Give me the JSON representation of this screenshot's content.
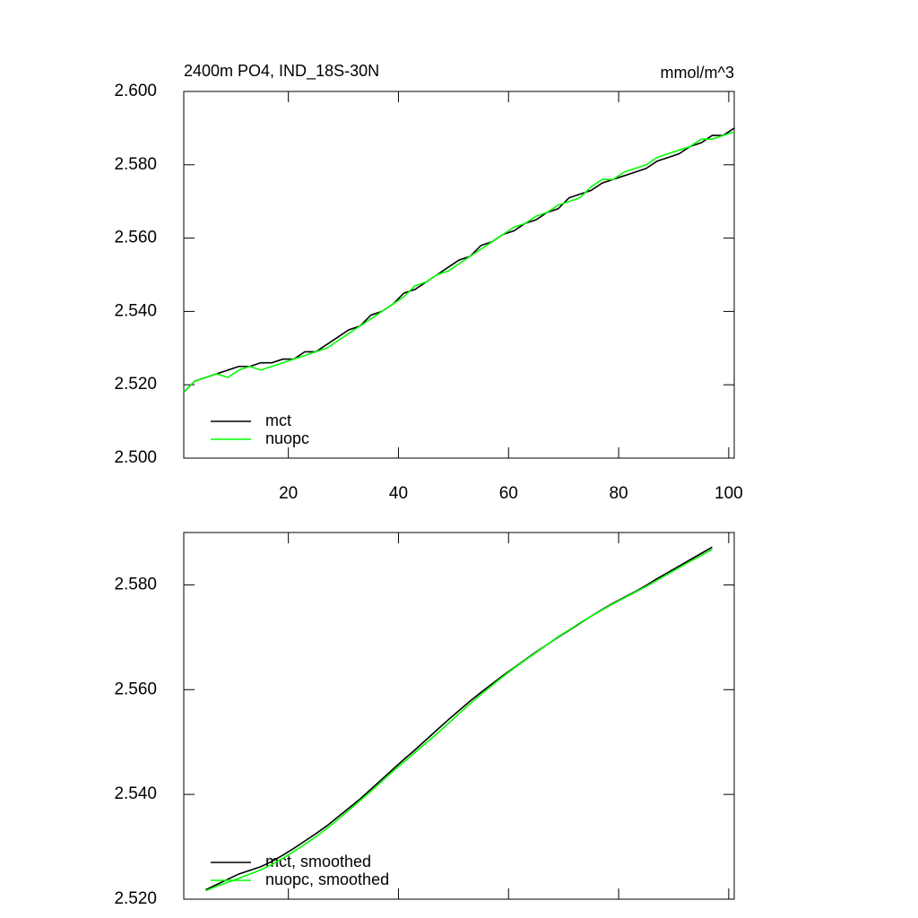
{
  "chart_data": [
    {
      "type": "line",
      "title": "2400m PO4, IND_18S-30N",
      "units": "mmol/m^3",
      "x": [
        1,
        3,
        5,
        7,
        9,
        11,
        13,
        15,
        17,
        19,
        21,
        23,
        25,
        27,
        29,
        31,
        33,
        35,
        37,
        39,
        41,
        43,
        45,
        47,
        49,
        51,
        53,
        55,
        57,
        59,
        61,
        63,
        65,
        67,
        69,
        71,
        73,
        75,
        77,
        79,
        81,
        83,
        85,
        87,
        89,
        91,
        93,
        95,
        97,
        99,
        101
      ],
      "series": [
        {
          "name": "mct",
          "color": "#000000",
          "values": [
            2.518,
            2.521,
            2.522,
            2.523,
            2.524,
            2.525,
            2.525,
            2.526,
            2.526,
            2.527,
            2.527,
            2.529,
            2.529,
            2.531,
            2.533,
            2.535,
            2.536,
            2.539,
            2.54,
            2.542,
            2.545,
            2.546,
            2.548,
            2.55,
            2.552,
            2.554,
            2.555,
            2.558,
            2.559,
            2.561,
            2.562,
            2.564,
            2.565,
            2.567,
            2.568,
            2.571,
            2.572,
            2.573,
            2.575,
            2.576,
            2.577,
            2.578,
            2.579,
            2.581,
            2.582,
            2.583,
            2.585,
            2.586,
            2.588,
            2.588,
            2.59
          ]
        },
        {
          "name": "nuopc",
          "color": "#00ff00",
          "values": [
            2.518,
            2.521,
            2.522,
            2.523,
            2.522,
            2.524,
            2.525,
            2.524,
            2.525,
            2.526,
            2.527,
            2.528,
            2.529,
            2.53,
            2.532,
            2.534,
            2.536,
            2.538,
            2.54,
            2.542,
            2.544,
            2.547,
            2.548,
            2.55,
            2.551,
            2.553,
            2.555,
            2.557,
            2.559,
            2.561,
            2.563,
            2.564,
            2.566,
            2.567,
            2.569,
            2.57,
            2.571,
            2.574,
            2.576,
            2.576,
            2.578,
            2.579,
            2.58,
            2.582,
            2.583,
            2.584,
            2.585,
            2.587,
            2.587,
            2.588,
            2.589
          ]
        }
      ],
      "xlim": [
        1,
        101
      ],
      "xticks": [
        20,
        40,
        60,
        80,
        100
      ],
      "xtick_labels": true,
      "ylim": [
        2.5,
        2.6
      ],
      "yticks": [
        {
          "value": 2.5,
          "label": "2.500"
        },
        {
          "value": 2.52,
          "label": "2.520"
        },
        {
          "value": 2.54,
          "label": "2.540"
        },
        {
          "value": 2.56,
          "label": "2.560"
        },
        {
          "value": 2.58,
          "label": "2.580"
        },
        {
          "value": 2.6,
          "label": "2.600"
        }
      ],
      "legend": "lower left"
    },
    {
      "type": "line",
      "x": [
        5,
        7,
        9,
        11,
        13,
        15,
        17,
        19,
        21,
        23,
        25,
        27,
        29,
        31,
        33,
        35,
        37,
        39,
        41,
        43,
        45,
        47,
        49,
        51,
        53,
        55,
        57,
        59,
        61,
        63,
        65,
        67,
        69,
        71,
        73,
        75,
        77,
        79,
        81,
        83,
        85,
        87,
        89,
        91,
        93,
        95,
        97
      ],
      "series": [
        {
          "name": "mct, smoothed",
          "color": "#000000",
          "values": [
            2.5218,
            2.5228,
            2.5238,
            2.5248,
            2.5255,
            2.5262,
            2.5272,
            2.5284,
            2.5297,
            2.5311,
            2.5325,
            2.534,
            2.5357,
            2.5374,
            2.5391,
            2.541,
            2.5429,
            2.5448,
            2.5467,
            2.5485,
            2.5504,
            2.5523,
            2.5542,
            2.556,
            2.5578,
            2.5595,
            2.5611,
            2.5627,
            2.5642,
            2.5657,
            2.5672,
            2.5686,
            2.57,
            2.5713,
            2.5727,
            2.574,
            2.5753,
            2.5765,
            2.5776,
            2.5787,
            2.5799,
            2.5812,
            2.5824,
            2.5836,
            2.5848,
            2.586,
            2.5872
          ]
        },
        {
          "name": "nuopc, smoothed",
          "color": "#00ff00",
          "values": [
            2.5216,
            2.5225,
            2.5232,
            2.524,
            2.5248,
            2.5256,
            2.5266,
            2.5278,
            2.5291,
            2.5305,
            2.5319,
            2.5335,
            2.5352,
            2.537,
            2.5388,
            2.5406,
            2.5425,
            2.5444,
            2.5462,
            2.548,
            2.5498,
            2.5516,
            2.5535,
            2.5554,
            2.5573,
            2.5591,
            2.5608,
            2.5625,
            2.5641,
            2.5656,
            2.5671,
            2.5686,
            2.5701,
            2.5714,
            2.5728,
            2.574,
            2.5752,
            2.5764,
            2.5775,
            2.5786,
            2.5797,
            2.5809,
            2.5821,
            2.5833,
            2.5845,
            2.5856,
            2.5868
          ]
        }
      ],
      "xlim": [
        1,
        101
      ],
      "xticks": [
        20,
        40,
        60,
        80,
        100
      ],
      "xtick_labels": false,
      "ylim": [
        2.52,
        2.59
      ],
      "yticks": [
        {
          "value": 2.52,
          "label": "2.520"
        },
        {
          "value": 2.54,
          "label": "2.540"
        },
        {
          "value": 2.56,
          "label": "2.560"
        },
        {
          "value": 2.58,
          "label": "2.580"
        }
      ],
      "legend": "lower left"
    }
  ]
}
